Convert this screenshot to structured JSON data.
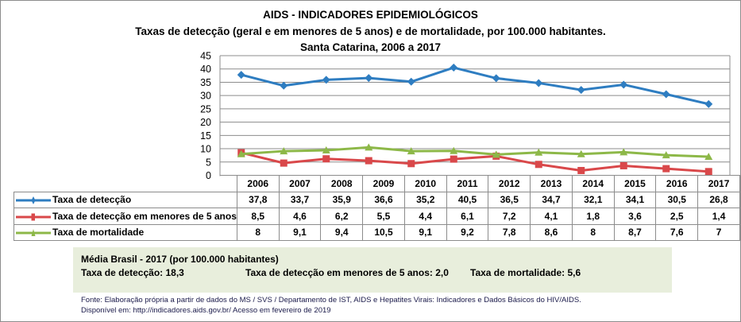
{
  "title": "AIDS - INDICADORES EPIDEMIOLÓGICOS",
  "subtitle": "Taxas de detecção (geral e em menores de 5 anos) e de mortalidade, por 100.000 habitantes.",
  "subtitle2": "Santa  Catarina, 2006 a 2017",
  "chart_data": {
    "type": "line",
    "categories": [
      "2006",
      "2007",
      "2008",
      "2009",
      "2010",
      "2011",
      "2012",
      "2013",
      "2014",
      "2015",
      "2016",
      "2017"
    ],
    "ylim": [
      0,
      45
    ],
    "yticks": [
      "0",
      "5",
      "10",
      "15",
      "20",
      "25",
      "30",
      "35",
      "40",
      "45"
    ],
    "grid": true,
    "legend": "data-table",
    "series": [
      {
        "name": "Taxa de detecção",
        "color": "#2e7dc1",
        "marker": "diamond",
        "values": [
          37.8,
          33.7,
          35.9,
          36.6,
          35.2,
          40.5,
          36.5,
          34.7,
          32.1,
          34.1,
          30.5,
          26.8
        ],
        "labels": [
          "37,8",
          "33,7",
          "35,9",
          "36,6",
          "35,2",
          "40,5",
          "36,5",
          "34,7",
          "32,1",
          "34,1",
          "30,5",
          "26,8"
        ]
      },
      {
        "name": "Taxa de detecção em menores de 5 anos",
        "color": "#d9484a",
        "marker": "square",
        "values": [
          8.5,
          4.6,
          6.2,
          5.5,
          4.4,
          6.1,
          7.2,
          4.1,
          1.8,
          3.6,
          2.5,
          1.4
        ],
        "labels": [
          "8,5",
          "4,6",
          "6,2",
          "5,5",
          "4,4",
          "6,1",
          "7,2",
          "4,1",
          "1,8",
          "3,6",
          "2,5",
          "1,4"
        ]
      },
      {
        "name": "Taxa de mortalidade",
        "color": "#8db848",
        "marker": "triangle",
        "values": [
          8,
          9.1,
          9.4,
          10.5,
          9.1,
          9.2,
          7.8,
          8.6,
          8,
          8.7,
          7.6,
          7
        ],
        "labels": [
          "8",
          "9,1",
          "9,4",
          "10,5",
          "9,1",
          "9,2",
          "7,8",
          "8,6",
          "8",
          "8,7",
          "7,6",
          "7"
        ]
      }
    ]
  },
  "brasil": {
    "heading": "Média Brasil - 2017  (por 100.000 habitantes)",
    "deteccao": "Taxa  de detecção: 18,3",
    "menores": "Taxa  de detecção em menores de 5 anos:  2,0",
    "mortalidade": "Taxa  de mortalidade: 5,6"
  },
  "fonte": {
    "line1": "Fonte: Elaboração própria a partir de dados do MS / SVS / Departamento de IST, AIDS e Hepatites Virais: Indicadores e Dados Básicos do HIV/AIDS.",
    "line2": "Disponível em: http://indicadores.aids.gov.br/    Acesso em fevereiro de 2019"
  }
}
